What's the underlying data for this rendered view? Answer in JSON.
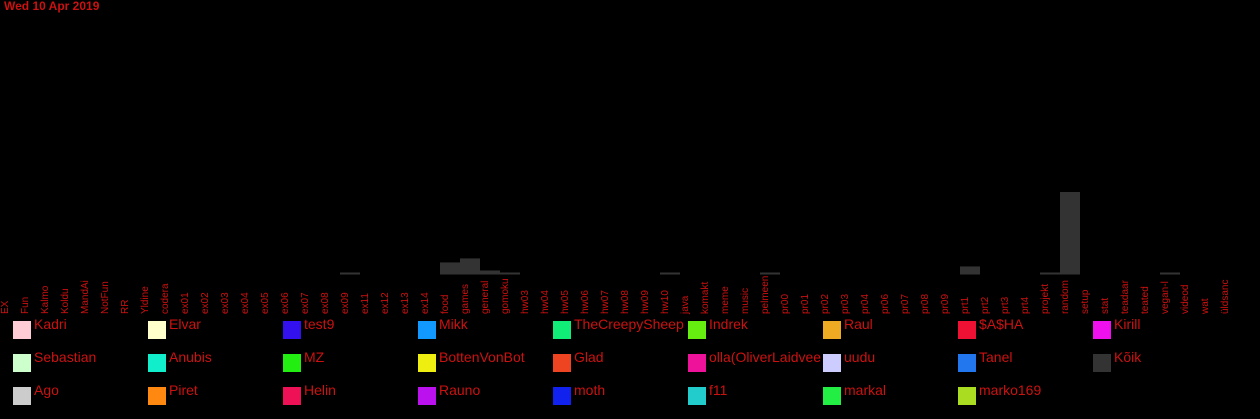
{
  "date_label": "Wed 10 Apr 2019",
  "chart_data": {
    "type": "bar",
    "stacked": true,
    "bar_color": "#333333",
    "categories": [
      "EX",
      "Fun",
      "Kalmo",
      "Koldu",
      "MandAi",
      "NotFun",
      "RR",
      "Yldine",
      "codera",
      "ex01",
      "ex02",
      "ex03",
      "ex04",
      "ex05",
      "ex06",
      "ex07",
      "ex08",
      "ex09",
      "ex11",
      "ex12",
      "ex13",
      "ex14",
      "food",
      "games",
      "general",
      "gomoku",
      "hw03",
      "hw04",
      "hw05",
      "hw06",
      "hw07",
      "hw08",
      "hw09",
      "hw10",
      "java",
      "komakt",
      "meme",
      "music",
      "pelmeen",
      "pr00",
      "pr01",
      "pr02",
      "pr03",
      "pr04",
      "pr06",
      "pr07",
      "pr08",
      "pr09",
      "prt1",
      "prt2",
      "prt3",
      "prt4",
      "projekt",
      "random",
      "setup",
      "stat",
      "teadaar",
      "teated",
      "vegan-l",
      "videod",
      "wat",
      "üldsanc"
    ],
    "values": [
      0,
      0,
      0,
      0,
      0,
      0,
      0,
      0,
      0,
      0,
      0,
      0,
      0,
      0,
      0,
      0,
      0,
      1,
      0,
      0,
      0,
      0,
      6,
      8,
      2,
      1,
      0,
      0,
      0,
      0,
      0,
      0,
      0,
      1,
      0,
      0,
      0,
      0,
      1,
      0,
      0,
      0,
      0,
      0,
      0,
      0,
      0,
      0,
      4,
      0,
      0,
      0,
      1,
      41,
      0,
      0,
      0,
      0,
      1,
      0,
      0,
      0
    ],
    "ylim": [
      0,
      41
    ],
    "legend": [
      {
        "name": "Kadri",
        "color": "#ffccd5"
      },
      {
        "name": "Elvar",
        "color": "#ffffcc"
      },
      {
        "name": "test9",
        "color": "#3311ee"
      },
      {
        "name": "Mikk",
        "color": "#1199ff"
      },
      {
        "name": "TheCreepySheep",
        "color": "#11ee77"
      },
      {
        "name": "Indrek",
        "color": "#66ee11"
      },
      {
        "name": "Raul",
        "color": "#eeaa22"
      },
      {
        "name": "$A$HA",
        "color": "#ee1133"
      },
      {
        "name": "Kirill",
        "color": "#ee11ee"
      },
      {
        "name": "Sebastian",
        "color": "#ccffcc"
      },
      {
        "name": "Anubis",
        "color": "#11eecc"
      },
      {
        "name": "MZ",
        "color": "#22ee11"
      },
      {
        "name": "BottenVonBot",
        "color": "#eeee11"
      },
      {
        "name": "Glad",
        "color": "#ee4422"
      },
      {
        "name": "olla(OliverLaidvee)",
        "color": "#ee1199"
      },
      {
        "name": "uudu",
        "color": "#ccccff"
      },
      {
        "name": "Tanel",
        "color": "#2277ee"
      },
      {
        "name": "Kõik",
        "color": "#333333"
      },
      {
        "name": "Ago",
        "color": "#cccccc"
      },
      {
        "name": "Piret",
        "color": "#ff8811"
      },
      {
        "name": "Helin",
        "color": "#ee1155"
      },
      {
        "name": "Rauno",
        "color": "#bb11ee"
      },
      {
        "name": "moth",
        "color": "#1122ee"
      },
      {
        "name": "f11",
        "color": "#22cccc"
      },
      {
        "name": "markal",
        "color": "#22ee44"
      },
      {
        "name": "marko169",
        "color": "#aadd22"
      }
    ]
  }
}
